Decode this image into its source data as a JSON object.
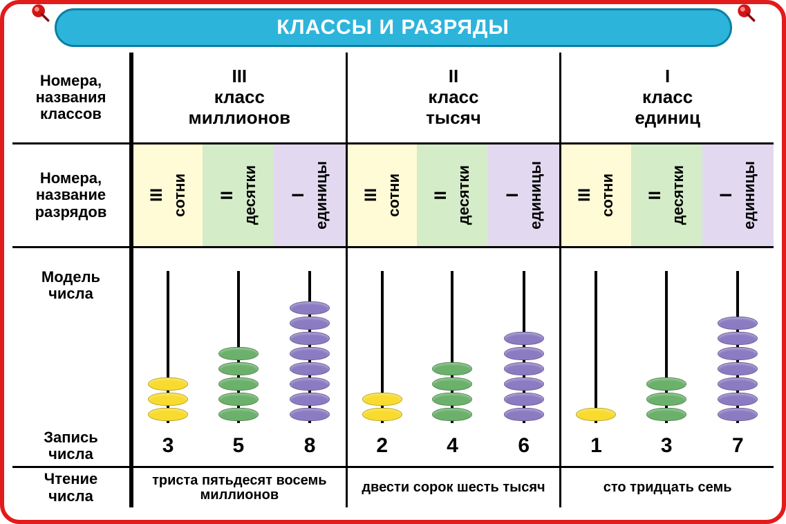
{
  "colors": {
    "frame_border": "#e21b1b",
    "pin": "#d01515",
    "pin_highlight": "#ff6a6a",
    "title_bg": "#2db4db",
    "title_border": "#0b7fa4",
    "title_text": "#ffffff",
    "cell_yellow": "#fffbd6",
    "cell_green": "#d4ecc8",
    "cell_purple": "#e2d9f0",
    "bead_yellow": "#f8db2e",
    "bead_green": "#6bb06b",
    "bead_purple": "#8b7bc2"
  },
  "title": "КЛАССЫ И РАЗРЯДЫ",
  "labels": {
    "classes": "Номера, названия классов",
    "digits": "Номера, название разрядов",
    "model": "Модель числа",
    "write": "Запись числа",
    "read": "Чтение числа"
  },
  "class_groups": [
    {
      "roman": "III",
      "line1": "класс",
      "line2": "миллионов"
    },
    {
      "roman": "II",
      "line1": "класс",
      "line2": "тысяч"
    },
    {
      "roman": "I",
      "line1": "класс",
      "line2": "единиц"
    }
  ],
  "digit_defs": [
    {
      "roman": "III",
      "name": "сотни",
      "bg": "cell_yellow",
      "bead": "bead_yellow"
    },
    {
      "roman": "II",
      "name": "десятки",
      "bg": "cell_green",
      "bead": "bead_green"
    },
    {
      "roman": "I",
      "name": "единицы",
      "bg": "cell_purple",
      "bead": "bead_purple"
    }
  ],
  "columns": [
    {
      "def": 0,
      "value": 3
    },
    {
      "def": 1,
      "value": 5
    },
    {
      "def": 2,
      "value": 8
    },
    {
      "def": 0,
      "value": 2
    },
    {
      "def": 1,
      "value": 4
    },
    {
      "def": 2,
      "value": 6
    },
    {
      "def": 0,
      "value": 1
    },
    {
      "def": 1,
      "value": 3
    },
    {
      "def": 2,
      "value": 7
    }
  ],
  "read_groups": [
    "триста пятьдесят восемь миллионов",
    "двести сорок шесть тысяч",
    "сто тридцать семь"
  ],
  "abacus": {
    "rod_height": 220,
    "bead_height": 22
  }
}
